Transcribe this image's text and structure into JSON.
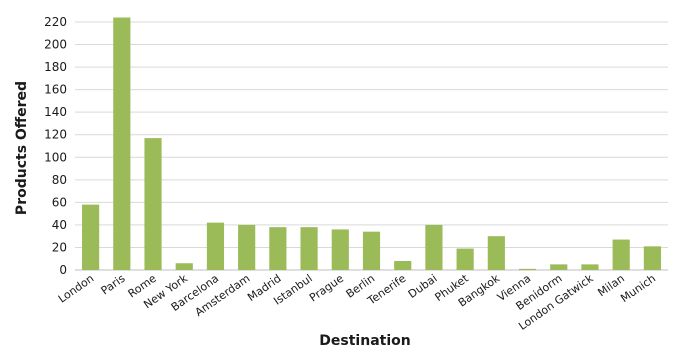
{
  "chart_data": {
    "type": "bar",
    "xlabel": "Destination",
    "ylabel": "Products Offered",
    "ylim": [
      0,
      220
    ],
    "yticks": [
      0,
      20,
      40,
      60,
      80,
      100,
      120,
      140,
      160,
      180,
      200,
      220
    ],
    "grid": true,
    "bar_color": "#9bbb59",
    "categories": [
      "London",
      "Paris",
      "Rome",
      "New York",
      "Barcelona",
      "Amsterdam",
      "Madrid",
      "Istanbul",
      "Prague",
      "Berlin",
      "Tenerife",
      "Dubai",
      "Phuket",
      "Bangkok",
      "Vienna",
      "Benidorm",
      "London Gatwick",
      "Milan",
      "Munich"
    ],
    "values": [
      58,
      224,
      117,
      6,
      42,
      40,
      38,
      38,
      36,
      34,
      8,
      40,
      19,
      30,
      1,
      5,
      5,
      27,
      21
    ]
  }
}
